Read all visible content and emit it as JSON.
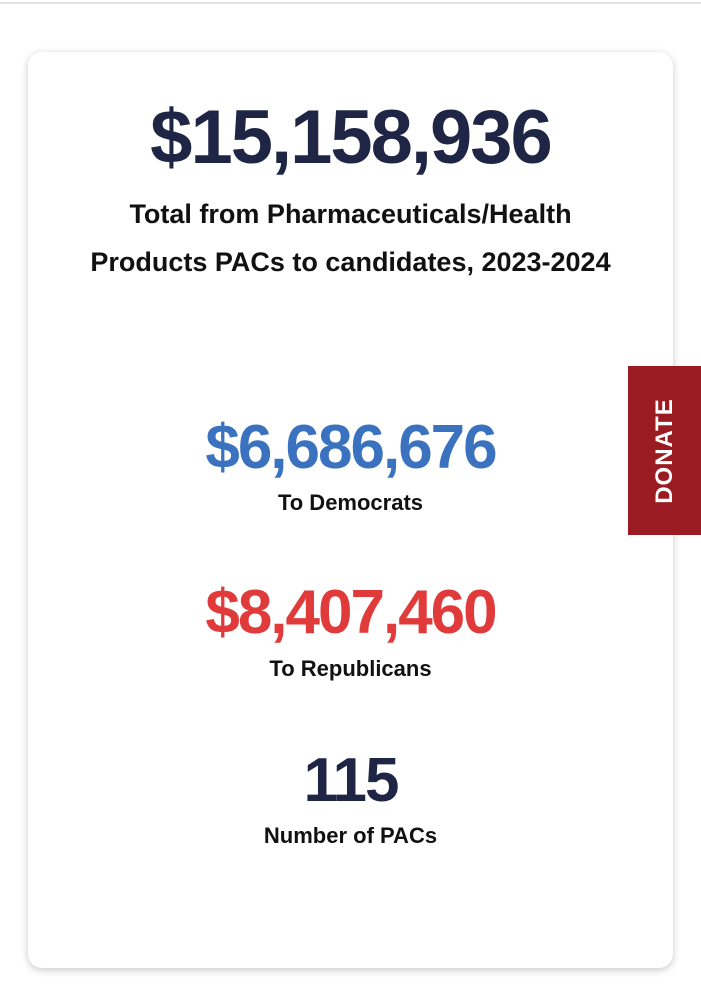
{
  "card": {
    "total": {
      "value": "$15,158,936",
      "label": "Total from Pharmaceuticals/Health Products PACs to candidates, 2023-2024"
    },
    "stats": [
      {
        "value": "$6,686,676",
        "label": "To Democrats"
      },
      {
        "value": "$8,407,460",
        "label": "To Republicans"
      },
      {
        "value": "115",
        "label": "Number of PACs"
      }
    ]
  },
  "donate_button": "DONATE"
}
